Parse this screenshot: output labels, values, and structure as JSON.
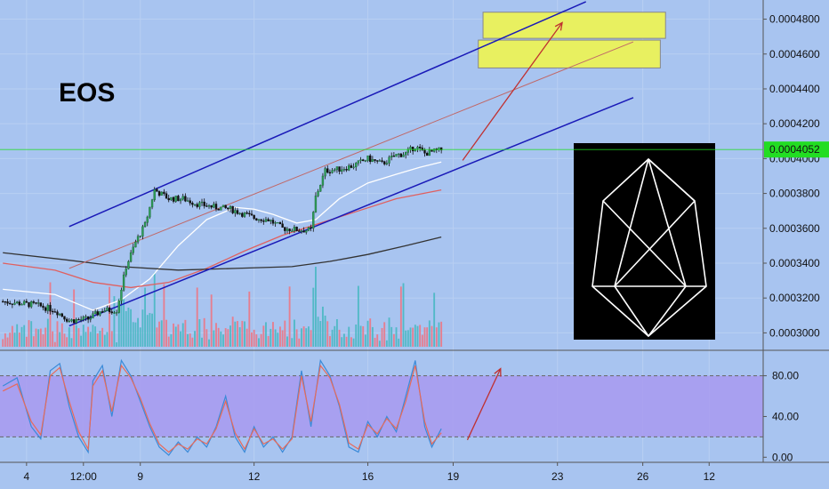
{
  "chart_data": [
    {
      "type": "candlestick",
      "title": "EOS",
      "symbol_note": "",
      "y_axis": {
        "position": "right",
        "ylim": [
          0.00029,
          0.000491
        ],
        "ticks": [
          {
            "value": 0.00048,
            "label": "0.0004800"
          },
          {
            "value": 0.00046,
            "label": "0.0004600"
          },
          {
            "value": 0.00044,
            "label": "0.0004400"
          },
          {
            "value": 0.00042,
            "label": "0.0004200"
          },
          {
            "value": 0.0004,
            "label": "0.0004000"
          },
          {
            "value": 0.00038,
            "label": "0.0003800"
          },
          {
            "value": 0.00036,
            "label": "0.0003600"
          },
          {
            "value": 0.00034,
            "label": "0.0003400"
          },
          {
            "value": 0.00032,
            "label": "0.0003200"
          },
          {
            "value": 0.0003,
            "label": "0.0003000"
          }
        ]
      },
      "last_price": {
        "value": 0.0004052,
        "label": "0.0004052",
        "color": "#22dd22"
      },
      "x_axis": {
        "xlim": [
          -5.6,
          155.4
        ],
        "ticks": [
          {
            "value": 0,
            "label": "4"
          },
          {
            "value": 12,
            "label": "12:00"
          },
          {
            "value": 24,
            "label": "9"
          },
          {
            "value": 48,
            "label": "12"
          },
          {
            "value": 72,
            "label": "16"
          },
          {
            "value": 90,
            "label": "19"
          },
          {
            "value": 112,
            "label": "23"
          },
          {
            "value": 130,
            "label": "26"
          },
          {
            "value": 144,
            "label": "12"
          }
        ]
      },
      "price_path": [
        [
          -5,
          0.000318
        ],
        [
          2,
          0.000316
        ],
        [
          6,
          0.000313
        ],
        [
          9,
          0.000307
        ],
        [
          13,
          0.000308
        ],
        [
          16,
          0.000313
        ],
        [
          19,
          0.000313
        ],
        [
          21,
          0.000338
        ],
        [
          23,
          0.000352
        ],
        [
          25,
          0.000362
        ],
        [
          27,
          0.000382
        ],
        [
          30,
          0.000377
        ],
        [
          33,
          0.000377
        ],
        [
          36,
          0.000374
        ],
        [
          40,
          0.000372
        ],
        [
          43,
          0.000371
        ],
        [
          46,
          0.000368
        ],
        [
          48,
          0.000366
        ],
        [
          51,
          0.000365
        ],
        [
          54,
          0.00036
        ],
        [
          58,
          0.000359
        ],
        [
          60,
          0.000359
        ],
        [
          61,
          0.000378
        ],
        [
          63,
          0.000393
        ],
        [
          66,
          0.000394
        ],
        [
          69,
          0.000396
        ],
        [
          72,
          0.0004
        ],
        [
          75,
          0.000397
        ],
        [
          78,
          0.000402
        ],
        [
          80,
          0.000403
        ],
        [
          82,
          0.000407
        ],
        [
          84,
          0.000403
        ],
        [
          86,
          0.000404
        ],
        [
          87.5,
          0.000405
        ]
      ],
      "moving_averages": [
        {
          "color": "#ffffff",
          "points": [
            [
              -5,
              0.000325
            ],
            [
              6,
              0.000322
            ],
            [
              14,
              0.000313
            ],
            [
              20,
              0.000319
            ],
            [
              26,
              0.000331
            ],
            [
              32,
              0.00035
            ],
            [
              38,
              0.000365
            ],
            [
              44,
              0.000372
            ],
            [
              48,
              0.000371
            ],
            [
              52,
              0.000368
            ],
            [
              57,
              0.000363
            ],
            [
              61,
              0.000365
            ],
            [
              66,
              0.000377
            ],
            [
              72,
              0.000386
            ],
            [
              78,
              0.000391
            ],
            [
              83,
              0.000395
            ],
            [
              87.5,
              0.000398
            ]
          ]
        },
        {
          "color": "#e06060",
          "points": [
            [
              -5,
              0.00034
            ],
            [
              6,
              0.000336
            ],
            [
              14,
              0.000329
            ],
            [
              22,
              0.000326
            ],
            [
              30,
              0.000329
            ],
            [
              38,
              0.000337
            ],
            [
              46,
              0.000347
            ],
            [
              54,
              0.000356
            ],
            [
              62,
              0.000363
            ],
            [
              70,
              0.00037
            ],
            [
              78,
              0.000377
            ],
            [
              87.5,
              0.000382
            ]
          ]
        },
        {
          "color": "#333333",
          "points": [
            [
              -5,
              0.000346
            ],
            [
              8,
              0.000342
            ],
            [
              20,
              0.000338
            ],
            [
              32,
              0.000336
            ],
            [
              44,
              0.000337
            ],
            [
              56,
              0.000338
            ],
            [
              64,
              0.000341
            ],
            [
              72,
              0.000345
            ],
            [
              80,
              0.00035
            ],
            [
              87.5,
              0.000355
            ]
          ]
        }
      ],
      "trend_channel": {
        "upper": {
          "from": [
            9,
            0.000361
          ],
          "to": [
            118,
            0.00049
          ],
          "color": "#1a1ab8"
        },
        "lower": {
          "from": [
            9,
            0.000304
          ],
          "to": [
            128,
            0.000435
          ],
          "color": "#1a1ab8"
        },
        "middle": {
          "from": [
            9,
            0.000337
          ],
          "to": [
            128,
            0.000467
          ],
          "color": "#c06868"
        }
      },
      "target_zones": [
        {
          "x_from": 96.3,
          "x_to": 134.8,
          "y_from": 0.000469,
          "y_to": 0.000484,
          "color": "#e8f060"
        },
        {
          "x_from": 95.3,
          "x_to": 133.7,
          "y_from": 0.000452,
          "y_to": 0.000468,
          "color": "#e8f060"
        }
      ],
      "projection_arrow": {
        "from": [
          92,
          0.000399
        ],
        "to": [
          113,
          0.000478
        ],
        "color": "#c03030"
      },
      "volume": {
        "max": 1.0,
        "colors": {
          "up": "#4db8c4",
          "down": "#e87a8a"
        }
      }
    },
    {
      "type": "line",
      "indicator": "stochastic",
      "y_axis": {
        "position": "right",
        "ylim": [
          -5,
          105
        ],
        "ticks": [
          {
            "value": 80,
            "label": "80.00"
          },
          {
            "value": 40,
            "label": "40.00"
          },
          {
            "value": 0,
            "label": "0.00"
          }
        ]
      },
      "band": {
        "from": 20,
        "to": 80,
        "color": "#a89af0"
      },
      "series": [
        {
          "color": "#3a8ad8",
          "points": [
            [
              -5,
              70
            ],
            [
              -2,
              78
            ],
            [
              1,
              30
            ],
            [
              3,
              18
            ],
            [
              5,
              85
            ],
            [
              7,
              92
            ],
            [
              9,
              50
            ],
            [
              11,
              20
            ],
            [
              13,
              5
            ],
            [
              14,
              75
            ],
            [
              16,
              90
            ],
            [
              18,
              40
            ],
            [
              20,
              95
            ],
            [
              22,
              80
            ],
            [
              24,
              55
            ],
            [
              26,
              30
            ],
            [
              28,
              10
            ],
            [
              30,
              2
            ],
            [
              32,
              15
            ],
            [
              34,
              5
            ],
            [
              36,
              20
            ],
            [
              38,
              10
            ],
            [
              40,
              30
            ],
            [
              42,
              60
            ],
            [
              44,
              20
            ],
            [
              46,
              5
            ],
            [
              48,
              30
            ],
            [
              50,
              10
            ],
            [
              52,
              20
            ],
            [
              54,
              5
            ],
            [
              56,
              20
            ],
            [
              58,
              85
            ],
            [
              60,
              30
            ],
            [
              62,
              95
            ],
            [
              64,
              80
            ],
            [
              66,
              50
            ],
            [
              68,
              10
            ],
            [
              70,
              5
            ],
            [
              72,
              35
            ],
            [
              74,
              20
            ],
            [
              76,
              40
            ],
            [
              78,
              25
            ],
            [
              80,
              60
            ],
            [
              82,
              95
            ],
            [
              84,
              30
            ],
            [
              85.5,
              10
            ],
            [
              87.5,
              28
            ]
          ]
        },
        {
          "color": "#e86a5a",
          "points": [
            [
              -5,
              65
            ],
            [
              -2,
              72
            ],
            [
              1,
              35
            ],
            [
              3,
              22
            ],
            [
              5,
              80
            ],
            [
              7,
              88
            ],
            [
              9,
              55
            ],
            [
              11,
              25
            ],
            [
              13,
              8
            ],
            [
              14,
              70
            ],
            [
              16,
              85
            ],
            [
              18,
              45
            ],
            [
              20,
              90
            ],
            [
              22,
              78
            ],
            [
              24,
              58
            ],
            [
              26,
              33
            ],
            [
              28,
              13
            ],
            [
              30,
              5
            ],
            [
              32,
              13
            ],
            [
              34,
              8
            ],
            [
              36,
              18
            ],
            [
              38,
              13
            ],
            [
              40,
              28
            ],
            [
              42,
              55
            ],
            [
              44,
              24
            ],
            [
              46,
              8
            ],
            [
              48,
              28
            ],
            [
              50,
              13
            ],
            [
              52,
              18
            ],
            [
              54,
              8
            ],
            [
              56,
              18
            ],
            [
              58,
              80
            ],
            [
              60,
              35
            ],
            [
              62,
              90
            ],
            [
              64,
              78
            ],
            [
              66,
              52
            ],
            [
              68,
              14
            ],
            [
              70,
              8
            ],
            [
              72,
              32
            ],
            [
              74,
              23
            ],
            [
              76,
              38
            ],
            [
              78,
              28
            ],
            [
              80,
              55
            ],
            [
              82,
              90
            ],
            [
              84,
              35
            ],
            [
              85.5,
              13
            ],
            [
              87.5,
              24
            ]
          ]
        }
      ],
      "projection_arrow": {
        "from": [
          93,
          17
        ],
        "to": [
          100,
          87
        ],
        "color": "#c03030"
      }
    }
  ]
}
